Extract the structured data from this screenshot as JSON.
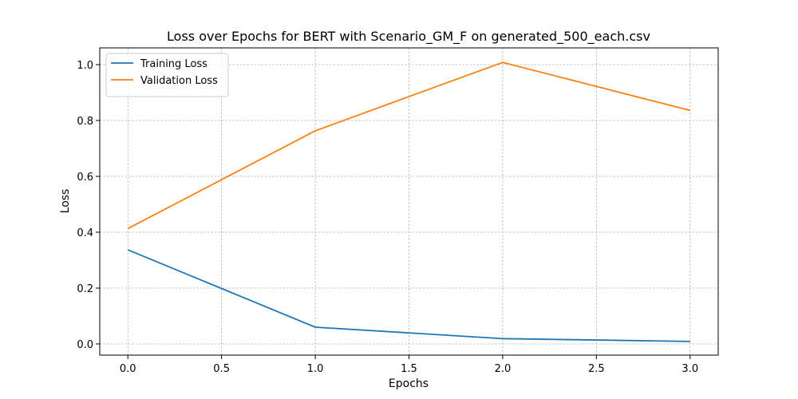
{
  "chart_data": {
    "type": "line",
    "title": "Loss over Epochs for BERT with Scenario_GM_F on generated_500_each.csv",
    "xlabel": "Epochs",
    "ylabel": "Loss",
    "x": [
      0,
      1,
      2,
      3
    ],
    "xlim": [
      -0.15,
      3.15
    ],
    "ylim": [
      -0.04,
      1.06
    ],
    "xticks": [
      0.0,
      0.5,
      1.0,
      1.5,
      2.0,
      2.5,
      3.0
    ],
    "xtick_labels": [
      "0.0",
      "0.5",
      "1.0",
      "1.5",
      "2.0",
      "2.5",
      "3.0"
    ],
    "yticks": [
      0.0,
      0.2,
      0.4,
      0.6,
      0.8,
      1.0
    ],
    "ytick_labels": [
      "0.0",
      "0.2",
      "0.4",
      "0.6",
      "0.8",
      "1.0"
    ],
    "grid": true,
    "legend_position": "top-left",
    "series": [
      {
        "name": "Training Loss",
        "color": "#1f77b4",
        "values": [
          0.337,
          0.06,
          0.019,
          0.009
        ]
      },
      {
        "name": "Validation Loss",
        "color": "#ff7f0e",
        "values": [
          0.413,
          0.763,
          1.008,
          0.836
        ]
      }
    ]
  }
}
